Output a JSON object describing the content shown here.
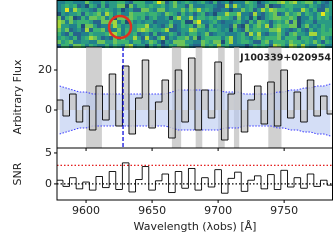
{
  "chart_data": [
    {
      "type": "step",
      "ylabel": "Arbitrary Flux",
      "annotation": "J100339+020954",
      "annotation_color": "#1010dd",
      "x": [
        9580,
        9585,
        9590,
        9595,
        9600,
        9605,
        9610,
        9615,
        9620,
        9625,
        9630,
        9635,
        9640,
        9645,
        9650,
        9655,
        9660,
        9665,
        9670,
        9675,
        9680,
        9685,
        9690,
        9695,
        9700,
        9705,
        9710,
        9715,
        9720,
        9725,
        9730,
        9735,
        9740,
        9745,
        9750,
        9755,
        9760,
        9765,
        9770,
        9775,
        9780,
        9785
      ],
      "values": [
        5,
        -3,
        8,
        -6,
        2,
        -10,
        12,
        -5,
        18,
        -8,
        22,
        -12,
        6,
        25,
        -9,
        4,
        15,
        -14,
        20,
        -6,
        26,
        -10,
        10,
        -4,
        24,
        -15,
        8,
        18,
        -11,
        5,
        12,
        -7,
        14,
        -8,
        20,
        -4,
        9,
        -6,
        15,
        -3,
        7,
        -2
      ],
      "error": [
        12,
        11,
        10,
        9,
        9,
        8,
        8,
        8,
        8,
        8,
        8,
        8,
        8,
        8,
        8,
        8,
        8,
        9,
        10,
        10,
        10,
        10,
        10,
        10,
        10,
        9,
        9,
        9,
        8,
        8,
        8,
        8,
        8,
        9,
        9,
        10,
        10,
        11,
        11,
        12,
        12,
        13
      ],
      "color": "#000000",
      "fill_color": "#c8c8c8",
      "error_color": "#3a3aff",
      "shaded": [
        [
          9600,
          9612
        ],
        [
          9665,
          9672
        ],
        [
          9683,
          9688
        ],
        [
          9700,
          9705
        ],
        [
          9712,
          9716
        ],
        [
          9738,
          9748
        ]
      ],
      "vline": 9628,
      "vline_color": "#1010dd",
      "ylim": [
        -19,
        31.5
      ],
      "yticks": [
        0,
        20
      ]
    },
    {
      "type": "step",
      "ylabel": "SNR",
      "xlabel": "Wavelength (λobs) [Å]",
      "x": [
        9580,
        9585,
        9590,
        9595,
        9600,
        9605,
        9610,
        9615,
        9620,
        9625,
        9630,
        9635,
        9640,
        9645,
        9650,
        9655,
        9660,
        9665,
        9670,
        9675,
        9680,
        9685,
        9690,
        9695,
        9700,
        9705,
        9710,
        9715,
        9720,
        9725,
        9730,
        9735,
        9740,
        9745,
        9750,
        9755,
        9760,
        9765,
        9770,
        9775,
        9780,
        9785
      ],
      "values": [
        0.6,
        -0.4,
        1,
        -0.8,
        0.3,
        -1,
        1.2,
        -0.6,
        2,
        -0.9,
        3.4,
        -1.3,
        0.7,
        2.8,
        -1,
        0.5,
        1.6,
        -1.4,
        2,
        -0.7,
        2.5,
        -1,
        1,
        -0.5,
        2.3,
        -1.5,
        0.9,
        1.9,
        -1.2,
        0.6,
        1.3,
        -0.8,
        1.5,
        -0.9,
        2.2,
        -0.5,
        1,
        -0.7,
        1.6,
        -0.4,
        0.6,
        -0.2
      ],
      "color": "#000000",
      "hlines": [
        3,
        0
      ],
      "hline_colors": [
        "#e00000",
        "#000000"
      ],
      "xlim": [
        9578,
        9787
      ],
      "xticks": [
        9600,
        9650,
        9700,
        9750
      ],
      "ylim": [
        -2.6,
        5.8
      ],
      "yticks": [
        0,
        5
      ]
    }
  ]
}
